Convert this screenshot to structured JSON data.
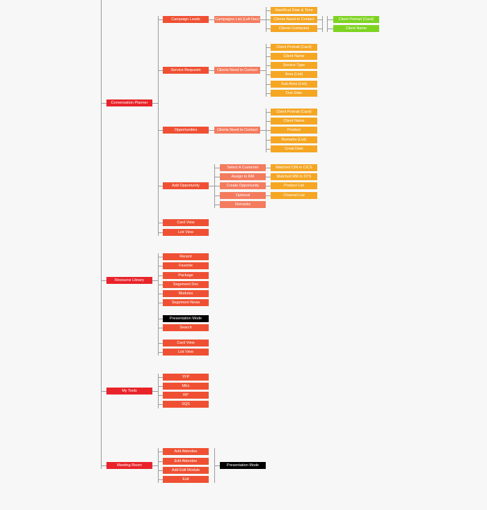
{
  "colors": {
    "level1": "#e8232a",
    "level2": "#ef5033",
    "level3": "#f47b5e",
    "level4": "#f5a623",
    "level5": "#7ed321",
    "highlight": "#000000",
    "connector": "#9a9a9a"
  },
  "nodes": {
    "conversation_planner": "Conversation Planner",
    "resource_library": "Resource Library",
    "my_tools": "My Tools",
    "meeting_room": "Meeting Room",
    "campaign_leads": "Campaign Leads",
    "campaigns_list": "Campaigns List (Left Nav)",
    "cl_start_end": "Start/End Date & Time",
    "cl_need_contact": "Clients Need to Contact",
    "cl_contacted": "Clients Contacted",
    "cl_portrait_card": "Client Portrait (Card)",
    "cl_client_name": "Client Name",
    "service_requests": "Service Requests",
    "sr_need_contact": "Clients Need to Contact",
    "sr_portrait": "Client Portrait (Card)",
    "sr_client_name": "Client Name",
    "sr_service_type": "Service Type",
    "sr_area": "Area (List)",
    "sr_sub_area": "Sub-Area (List)",
    "sr_due_date": "Due Date",
    "opportunities": "Opportunities",
    "op_need_contact": "Clients Need to Contact",
    "op_portrait": "Client Portrait (Card)",
    "op_client_name": "Client Name",
    "op_product": "Product",
    "op_remarks": "Remarks (List)",
    "op_creat_date": "Creat Date",
    "add_opportunity": "Add Opportunity",
    "ao_select_customer": "Select A Customer",
    "ao_assign_rm": "Assign to RM",
    "ao_create_opportunity": "Create Opportunity",
    "ao_optional": "Optional",
    "ao_remarks": "Remarks",
    "ao_matched_cin": "Matched CIN in CICS",
    "ao_matched_rm": "Matched RM in SYS",
    "ao_product_list": "Product List",
    "ao_channel_list": "Channel List",
    "cp_card_view": "Card View",
    "cp_list_view": "List View",
    "rl_recent": "Recent",
    "rl_favorite": "Favorite",
    "rl_package": "Package",
    "rl_segement_doc": "Segement Doc",
    "rl_modules": "Modules",
    "rl_segement_news": "Segement News",
    "rl_presentation_mode": "Presentation Mode",
    "rl_search": "Search",
    "rl_card_view": "Card View",
    "rl_list_view": "List View",
    "mt_yfp": "YFP",
    "mt_mex": "MEx",
    "mt_rp": "RP",
    "mt_sqs": "SQS",
    "mr_add_attendee": "Add Attendee",
    "mr_edit_attendee": "Edit Attendee",
    "mr_add_edit_module": "Add Edit Module",
    "mr_exit": "Exit",
    "mr_presentation_mode": "Presentation Mode"
  }
}
